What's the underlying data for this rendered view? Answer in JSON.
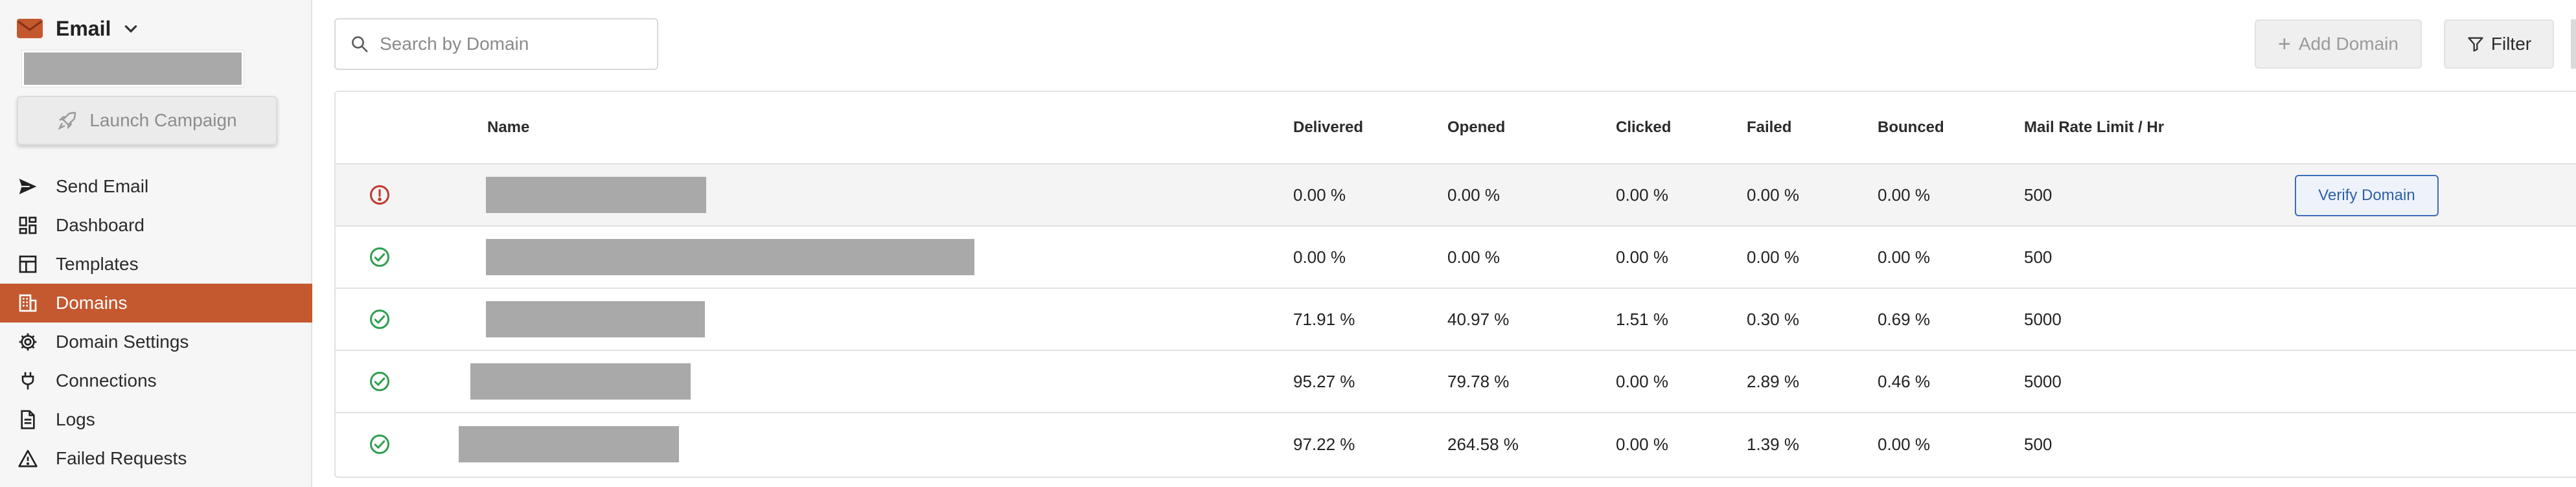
{
  "app": {
    "title": "Email",
    "logo_icon": "envelope-icon",
    "brand_color": "#c4582f"
  },
  "sidebar": {
    "launch_label": "Launch Campaign",
    "items": [
      {
        "label": "Send Email",
        "icon": "send-icon",
        "active": false
      },
      {
        "label": "Dashboard",
        "icon": "dashboard-icon",
        "active": false
      },
      {
        "label": "Templates",
        "icon": "templates-icon",
        "active": false
      },
      {
        "label": "Domains",
        "icon": "domains-icon",
        "active": true
      },
      {
        "label": "Domain Settings",
        "icon": "gear-icon",
        "active": false
      },
      {
        "label": "Connections",
        "icon": "plug-icon",
        "active": false
      },
      {
        "label": "Logs",
        "icon": "document-icon",
        "active": false
      },
      {
        "label": "Failed Requests",
        "icon": "warning-icon",
        "active": false
      }
    ]
  },
  "toolbar": {
    "search_placeholder": "Search by Domain",
    "add_label": "Add Domain",
    "filter_label": "Filter"
  },
  "table": {
    "columns": {
      "name": "Name",
      "delivered": "Delivered",
      "opened": "Opened",
      "clicked": "Clicked",
      "failed": "Failed",
      "bounced": "Bounced",
      "rate": "Mail Rate Limit / Hr"
    },
    "verify_label": "Verify Domain",
    "rows": [
      {
        "status": "unverified",
        "delivered": "0.00 %",
        "opened": "0.00 %",
        "clicked": "0.00 %",
        "failed": "0.00 %",
        "bounced": "0.00 %",
        "rate": "500"
      },
      {
        "status": "verified",
        "delivered": "0.00 %",
        "opened": "0.00 %",
        "clicked": "0.00 %",
        "failed": "0.00 %",
        "bounced": "0.00 %",
        "rate": "500"
      },
      {
        "status": "verified",
        "delivered": "71.91 %",
        "opened": "40.97 %",
        "clicked": "1.51 %",
        "failed": "0.30 %",
        "bounced": "0.69 %",
        "rate": "5000"
      },
      {
        "status": "verified",
        "delivered": "95.27 %",
        "opened": "79.78 %",
        "clicked": "0.00 %",
        "failed": "2.89 %",
        "bounced": "0.46 %",
        "rate": "5000"
      },
      {
        "status": "verified",
        "delivered": "97.22 %",
        "opened": "264.58 %",
        "clicked": "0.00 %",
        "failed": "1.39 %",
        "bounced": "0.00 %",
        "rate": "500"
      }
    ]
  },
  "colors": {
    "verified": "#2e9e4f",
    "unverified": "#c0392b",
    "link": "#2f5fa8"
  }
}
